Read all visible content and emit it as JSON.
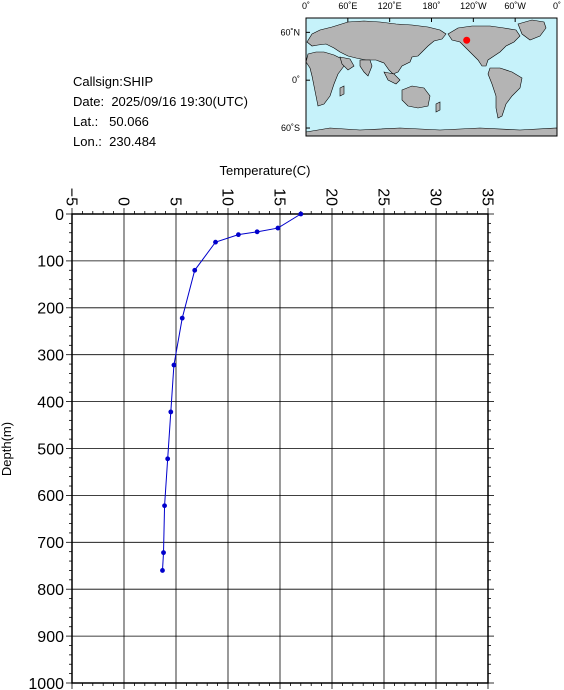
{
  "station": {
    "callsign_label": "Callsign:",
    "callsign": "SHIP",
    "date_label": "Date:",
    "date": "2025/09/16 19:30(UTC)",
    "lat_label": "Lat.:",
    "lat": "50.066",
    "lon_label": "Lon.:",
    "lon": "230.484"
  },
  "map": {
    "lon_ticks": [
      "0˚",
      "60˚E",
      "120˚E",
      "180˚",
      "120˚W",
      "60˚W",
      "0˚"
    ],
    "lat_ticks": [
      "60˚N",
      "0˚",
      "60˚S"
    ],
    "ocean_color": "#c6f2fa",
    "land_color": "#b4b4b4",
    "marker_color": "#ff0000",
    "marker": {
      "lon": 230.484,
      "lat": 50.066
    }
  },
  "chart_data": {
    "type": "line",
    "xlabel": "Temperature(C)",
    "ylabel": "Depth(m)",
    "xlim": [
      -5,
      35
    ],
    "ylim": [
      0,
      1000
    ],
    "y_inverted": true,
    "x_axis_position": "top",
    "grid": true,
    "x_ticks": [
      -5,
      0,
      5,
      10,
      15,
      20,
      25,
      30,
      35
    ],
    "y_ticks": [
      0,
      100,
      200,
      300,
      400,
      500,
      600,
      700,
      800,
      900,
      1000
    ],
    "line_color": "#0000cc",
    "series": [
      {
        "x": [
          17.0,
          14.8,
          12.8,
          11.0,
          8.8,
          6.8,
          5.6,
          4.8,
          4.5,
          4.2,
          3.9,
          3.8,
          3.7
        ],
        "y": [
          0,
          30,
          38,
          44,
          60,
          120,
          222,
          322,
          422,
          522,
          622,
          722,
          760
        ]
      }
    ]
  }
}
